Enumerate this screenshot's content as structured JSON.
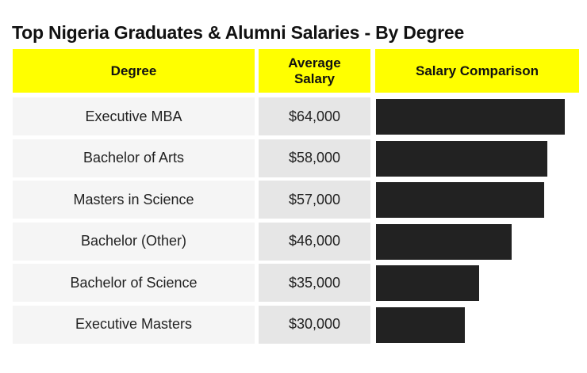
{
  "title": "Top Nigeria Graduates & Alumni Salaries - By Degree",
  "colors": {
    "header": "#ffff00",
    "bar": "#222222",
    "degree_cell": "#f5f5f5",
    "salary_cell": "#e6e6e6"
  },
  "headers": {
    "degree": "Degree",
    "average_salary": "Average Salary",
    "salary_comparison": "Salary Comparison"
  },
  "rows": [
    {
      "degree": "Executive MBA",
      "salary": "$64,000"
    },
    {
      "degree": "Bachelor of Arts",
      "salary": "$58,000"
    },
    {
      "degree": "Masters in Science",
      "salary": "$57,000"
    },
    {
      "degree": "Bachelor (Other)",
      "salary": "$46,000"
    },
    {
      "degree": "Bachelor of Science",
      "salary": "$35,000"
    },
    {
      "degree": "Executive Masters",
      "salary": "$30,000"
    }
  ],
  "chart_data": {
    "type": "bar",
    "orientation": "horizontal",
    "title": "Top Nigeria Graduates & Alumni Salaries - By Degree",
    "categories": [
      "Executive MBA",
      "Bachelor of Arts",
      "Masters in Science",
      "Bachelor (Other)",
      "Bachelor of Science",
      "Executive Masters"
    ],
    "values": [
      64000,
      58000,
      57000,
      46000,
      35000,
      30000
    ],
    "value_labels": [
      "$64,000",
      "$58,000",
      "$57,000",
      "$46,000",
      "$35,000",
      "$30,000"
    ],
    "xlim": [
      0,
      68000
    ],
    "grid": false,
    "legend": "none"
  }
}
